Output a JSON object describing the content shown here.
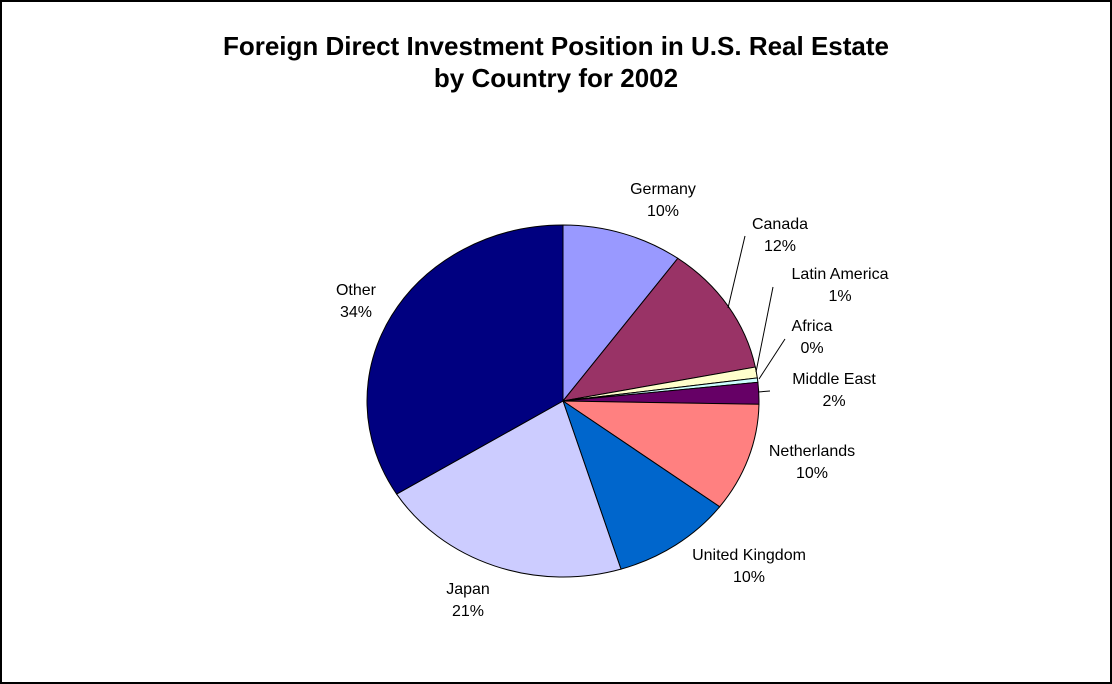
{
  "chart_data": {
    "type": "pie",
    "title": [
      "Foreign Direct Investment Position in U.S. Real Estate",
      "by Country for 2002"
    ],
    "categories": [
      "Germany",
      "Canada",
      "Latin America",
      "Africa",
      "Middle East",
      "Netherlands",
      "United Kingdom",
      "Japan",
      "Other"
    ],
    "values": [
      10,
      12,
      1,
      0.4,
      2,
      10,
      10,
      21,
      34
    ],
    "value_labels": [
      "10%",
      "12%",
      "1%",
      "0%",
      "2%",
      "10%",
      "10%",
      "21%",
      "34%"
    ],
    "colors": [
      "#9999ff",
      "#993366",
      "#ffffcc",
      "#ccffff",
      "#660066",
      "#ff8080",
      "#0066cc",
      "#ccccff",
      "#000080"
    ]
  }
}
